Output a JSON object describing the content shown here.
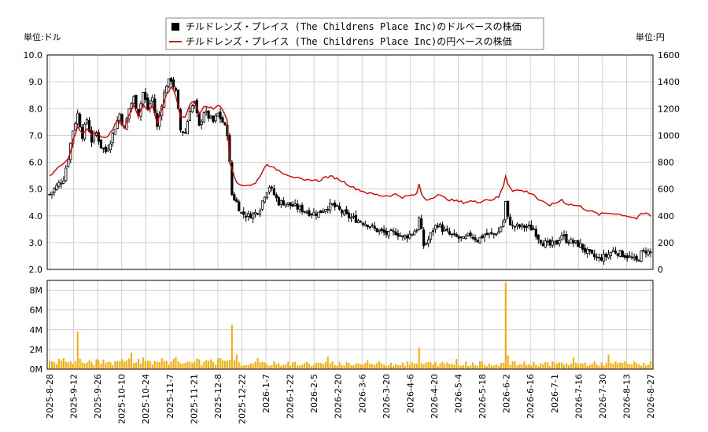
{
  "legend": {
    "dollar_label": "チルドレンズ・プレイス (The Childrens Place Inc)のドルベースの株価",
    "yen_label": "チルドレンズ・プレイス (The Childrens Place Inc)の円ベースの株価"
  },
  "left_unit": "単位:ドル",
  "right_unit": "単位:円",
  "colors": {
    "candle": "#000000",
    "yen_line": "#dd0000",
    "volume": "#ffaa00",
    "grid": "#cfcfcf"
  },
  "chart_data": [
    {
      "type": "candlestick",
      "title": "",
      "ylabel_left": "単位:ドル",
      "ylabel_right": "単位:円",
      "ylim_left": [
        2.0,
        10.0
      ],
      "ylim_right": [
        0,
        1600
      ],
      "yticks_left": [
        "2.0",
        "3.0",
        "4.0",
        "5.0",
        "6.0",
        "7.0",
        "8.0",
        "9.0",
        "10.0"
      ],
      "yticks_right": [
        "0",
        "200",
        "400",
        "600",
        "800",
        "1000",
        "1200",
        "1400",
        "1600"
      ],
      "x_tick_labels": [
        "2025-8-28",
        "2025-9-12",
        "2025-9-26",
        "2025-10-10",
        "2025-10-24",
        "2025-11-7",
        "2025-11-21",
        "2025-12-8",
        "2025-12-22",
        "2026-1-7",
        "2026-1-22",
        "2026-2-5",
        "2026-2-20",
        "2026-3-6",
        "2026-3-20",
        "2026-4-6",
        "2026-4-20",
        "2026-5-4",
        "2026-5-18",
        "2026-6-2",
        "2026-6-16",
        "2026-7-1",
        "2026-7-16",
        "2026-7-30",
        "2026-8-13",
        "2026-8-27"
      ],
      "close_usd_keypoints": [
        [
          0,
          4.8
        ],
        [
          3,
          5.1
        ],
        [
          6,
          5.4
        ],
        [
          8,
          6.2
        ],
        [
          10,
          7.2
        ],
        [
          12,
          7.8
        ],
        [
          14,
          7.0
        ],
        [
          16,
          7.6
        ],
        [
          18,
          6.8
        ],
        [
          20,
          7.1
        ],
        [
          22,
          6.6
        ],
        [
          24,
          6.4
        ],
        [
          26,
          6.8
        ],
        [
          28,
          7.3
        ],
        [
          30,
          7.8
        ],
        [
          32,
          7.2
        ],
        [
          34,
          8.0
        ],
        [
          36,
          8.4
        ],
        [
          38,
          7.8
        ],
        [
          40,
          8.6
        ],
        [
          42,
          8.0
        ],
        [
          44,
          8.4
        ],
        [
          46,
          7.3
        ],
        [
          48,
          8.2
        ],
        [
          50,
          8.9
        ],
        [
          52,
          9.1
        ],
        [
          54,
          8.6
        ],
        [
          56,
          7.2
        ],
        [
          58,
          7.1
        ],
        [
          60,
          8.0
        ],
        [
          62,
          8.2
        ],
        [
          64,
          7.3
        ],
        [
          66,
          7.9
        ],
        [
          68,
          7.7
        ],
        [
          70,
          7.5
        ],
        [
          72,
          7.8
        ],
        [
          74,
          7.5
        ],
        [
          76,
          7.1
        ],
        [
          78,
          4.8
        ],
        [
          80,
          4.5
        ],
        [
          82,
          4.1
        ],
        [
          85,
          4.0
        ],
        [
          88,
          4.1
        ],
        [
          90,
          4.3
        ],
        [
          92,
          4.8
        ],
        [
          94,
          5.1
        ],
        [
          96,
          4.8
        ],
        [
          98,
          4.5
        ],
        [
          100,
          4.5
        ],
        [
          103,
          4.4
        ],
        [
          106,
          4.3
        ],
        [
          109,
          4.2
        ],
        [
          112,
          4.1
        ],
        [
          115,
          4.1
        ],
        [
          118,
          4.3
        ],
        [
          121,
          4.4
        ],
        [
          124,
          4.2
        ],
        [
          127,
          4.0
        ],
        [
          130,
          3.9
        ],
        [
          133,
          3.8
        ],
        [
          136,
          3.7
        ],
        [
          139,
          3.5
        ],
        [
          142,
          3.4
        ],
        [
          145,
          3.3
        ],
        [
          148,
          3.4
        ],
        [
          151,
          3.2
        ],
        [
          154,
          3.3
        ],
        [
          157,
          3.5
        ],
        [
          158,
          3.9
        ],
        [
          160,
          2.9
        ],
        [
          162,
          3.1
        ],
        [
          164,
          3.5
        ],
        [
          166,
          3.7
        ],
        [
          168,
          3.5
        ],
        [
          171,
          3.3
        ],
        [
          174,
          3.2
        ],
        [
          177,
          3.1
        ],
        [
          180,
          3.3
        ],
        [
          183,
          3.1
        ],
        [
          186,
          3.3
        ],
        [
          189,
          3.3
        ],
        [
          192,
          3.4
        ],
        [
          194,
          3.8
        ],
        [
          195,
          4.5
        ],
        [
          196,
          3.9
        ],
        [
          198,
          3.6
        ],
        [
          201,
          3.6
        ],
        [
          204,
          3.6
        ],
        [
          207,
          3.5
        ],
        [
          209,
          3.2
        ],
        [
          211,
          3.0
        ],
        [
          214,
          2.9
        ],
        [
          217,
          3.0
        ],
        [
          219,
          3.3
        ],
        [
          221,
          3.1
        ],
        [
          224,
          3.0
        ],
        [
          227,
          2.9
        ],
        [
          229,
          2.7
        ],
        [
          232,
          2.5
        ],
        [
          235,
          2.4
        ],
        [
          238,
          2.5
        ],
        [
          241,
          2.7
        ],
        [
          244,
          2.6
        ],
        [
          247,
          2.5
        ],
        [
          249,
          2.4
        ],
        [
          251,
          2.3
        ],
        [
          253,
          2.6
        ],
        [
          255,
          2.7
        ],
        [
          257,
          2.6
        ]
      ],
      "close_jpy_keypoints": [
        [
          0,
          700
        ],
        [
          4,
          760
        ],
        [
          8,
          820
        ],
        [
          10,
          960
        ],
        [
          12,
          1060
        ],
        [
          14,
          1010
        ],
        [
          16,
          1050
        ],
        [
          18,
          1000
        ],
        [
          20,
          1020
        ],
        [
          22,
          990
        ],
        [
          24,
          980
        ],
        [
          26,
          1020
        ],
        [
          28,
          1080
        ],
        [
          30,
          1120
        ],
        [
          32,
          1060
        ],
        [
          34,
          1160
        ],
        [
          36,
          1220
        ],
        [
          38,
          1140
        ],
        [
          40,
          1230
        ],
        [
          42,
          1180
        ],
        [
          44,
          1220
        ],
        [
          46,
          1080
        ],
        [
          48,
          1200
        ],
        [
          50,
          1310
        ],
        [
          52,
          1360
        ],
        [
          54,
          1300
        ],
        [
          56,
          1140
        ],
        [
          58,
          1130
        ],
        [
          60,
          1240
        ],
        [
          62,
          1250
        ],
        [
          64,
          1160
        ],
        [
          66,
          1220
        ],
        [
          68,
          1210
        ],
        [
          70,
          1200
        ],
        [
          72,
          1230
        ],
        [
          74,
          1190
        ],
        [
          76,
          1120
        ],
        [
          77,
          800
        ],
        [
          78,
          760
        ],
        [
          80,
          640
        ],
        [
          82,
          630
        ],
        [
          86,
          630
        ],
        [
          88,
          640
        ],
        [
          90,
          700
        ],
        [
          92,
          760
        ],
        [
          93,
          790
        ],
        [
          95,
          760
        ],
        [
          98,
          740
        ],
        [
          100,
          720
        ],
        [
          103,
          700
        ],
        [
          106,
          680
        ],
        [
          109,
          660
        ],
        [
          112,
          670
        ],
        [
          115,
          660
        ],
        [
          118,
          690
        ],
        [
          121,
          690
        ],
        [
          124,
          670
        ],
        [
          127,
          640
        ],
        [
          130,
          610
        ],
        [
          133,
          590
        ],
        [
          136,
          570
        ],
        [
          139,
          560
        ],
        [
          142,
          550
        ],
        [
          145,
          550
        ],
        [
          148,
          560
        ],
        [
          151,
          540
        ],
        [
          154,
          550
        ],
        [
          157,
          560
        ],
        [
          158,
          640
        ],
        [
          159,
          560
        ],
        [
          161,
          520
        ],
        [
          163,
          530
        ],
        [
          166,
          560
        ],
        [
          168,
          540
        ],
        [
          171,
          520
        ],
        [
          174,
          510
        ],
        [
          177,
          500
        ],
        [
          180,
          510
        ],
        [
          183,
          500
        ],
        [
          186,
          520
        ],
        [
          189,
          520
        ],
        [
          192,
          540
        ],
        [
          194,
          620
        ],
        [
          195,
          700
        ],
        [
          196,
          640
        ],
        [
          198,
          590
        ],
        [
          201,
          590
        ],
        [
          204,
          580
        ],
        [
          207,
          560
        ],
        [
          209,
          520
        ],
        [
          211,
          500
        ],
        [
          214,
          480
        ],
        [
          217,
          500
        ],
        [
          219,
          520
        ],
        [
          221,
          490
        ],
        [
          224,
          480
        ],
        [
          227,
          470
        ],
        [
          229,
          450
        ],
        [
          232,
          430
        ],
        [
          235,
          410
        ],
        [
          238,
          420
        ],
        [
          241,
          420
        ],
        [
          244,
          410
        ],
        [
          247,
          400
        ],
        [
          249,
          390
        ],
        [
          251,
          380
        ],
        [
          253,
          410
        ],
        [
          255,
          420
        ],
        [
          257,
          400
        ]
      ],
      "volume_ylim": [
        0,
        9000000
      ],
      "volume_yticks": [
        "0M",
        "2M",
        "4M",
        "6M",
        "8M"
      ],
      "volume_spikes": [
        [
          12,
          3800000
        ],
        [
          78,
          4500000
        ],
        [
          158,
          2200000
        ],
        [
          195,
          8800000
        ],
        [
          196,
          1400000
        ],
        [
          224,
          1200000
        ],
        [
          246,
          800000
        ]
      ]
    }
  ]
}
